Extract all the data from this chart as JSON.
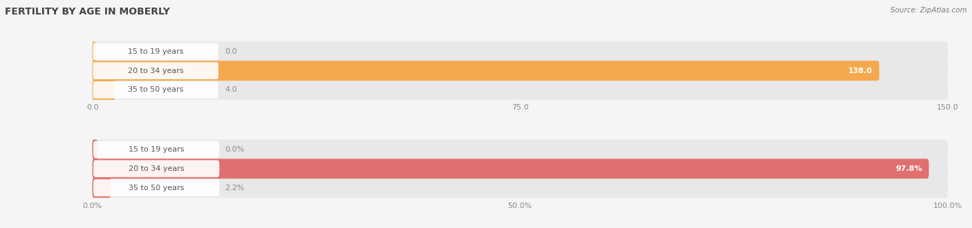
{
  "title": "FERTILITY BY AGE IN MOBERLY",
  "source": "Source: ZipAtlas.com",
  "top_chart": {
    "categories": [
      "15 to 19 years",
      "20 to 34 years",
      "35 to 50 years"
    ],
    "values": [
      0.0,
      138.0,
      4.0
    ],
    "xlim": [
      0,
      150
    ],
    "xticks": [
      0.0,
      75.0,
      150.0
    ],
    "xtick_labels": [
      "0.0",
      "75.0",
      "150.0"
    ],
    "bar_color": "#F5A94E",
    "bar_bg_color": "#E8E8E8",
    "label_bg_color": "#FFFFFF",
    "label_color": "#555555",
    "value_inside_color": "#FFFFFF",
    "value_outside_color": "#888888",
    "min_bar_for_inside": 20
  },
  "bottom_chart": {
    "categories": [
      "15 to 19 years",
      "20 to 34 years",
      "35 to 50 years"
    ],
    "values": [
      0.0,
      97.8,
      2.2
    ],
    "xlim": [
      0,
      100
    ],
    "xticks": [
      0.0,
      50.0,
      100.0
    ],
    "xtick_labels": [
      "0.0%",
      "50.0%",
      "100.0%"
    ],
    "bar_color": "#E07070",
    "bar_bg_color": "#E8E8E8",
    "label_bg_color": "#FFFFFF",
    "label_color": "#555555",
    "value_inside_color": "#FFFFFF",
    "value_outside_color": "#888888",
    "min_bar_for_inside": 15
  },
  "background_color": "#F5F5F5",
  "title_fontsize": 10,
  "label_fontsize": 8,
  "value_fontsize": 8,
  "source_fontsize": 7.5,
  "title_color": "#444444",
  "source_color": "#777777",
  "tick_color": "#888888",
  "grid_color": "#CCCCCC"
}
